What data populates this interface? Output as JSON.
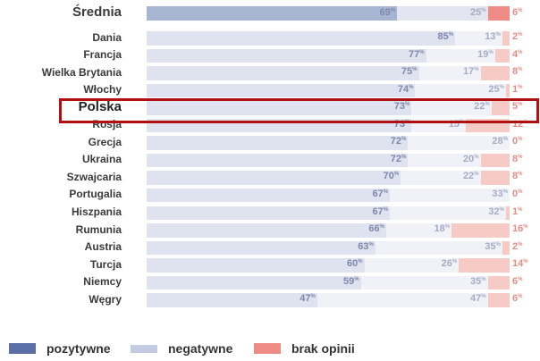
{
  "chart_data": {
    "type": "bar",
    "orientation": "horizontal",
    "stacked": true,
    "title": "",
    "xlabel": "",
    "ylabel": "",
    "xlim": [
      0,
      100
    ],
    "unit": "%",
    "categories": [
      "Średnia",
      "Dania",
      "Francja",
      "Wielka Brytania",
      "Włochy",
      "Polska",
      "Rosja",
      "Grecja",
      "Ukraina",
      "Szwajcaria",
      "Portugalia",
      "Hiszpania",
      "Rumunia",
      "Austria",
      "Turcja",
      "Niemcy",
      "Węgry"
    ],
    "series": [
      {
        "name": "pozytywne",
        "color": "#5b6fa6",
        "values": [
          69,
          85,
          77,
          75,
          74,
          73,
          73,
          72,
          72,
          70,
          67,
          67,
          66,
          63,
          60,
          59,
          47
        ]
      },
      {
        "name": "negatywne",
        "color": "#c3cbe3",
        "values": [
          25,
          13,
          19,
          17,
          25,
          22,
          15,
          28,
          20,
          22,
          33,
          32,
          18,
          35,
          26,
          35,
          47
        ]
      },
      {
        "name": "brak opinii",
        "color": "#ee8b84",
        "values": [
          6,
          2,
          4,
          8,
          1,
          5,
          12,
          0,
          8,
          8,
          0,
          1,
          16,
          2,
          14,
          6,
          6
        ]
      }
    ],
    "highlighted": "Polska",
    "legend_position": "bottom",
    "grid": false
  },
  "rows": [
    {
      "label": "Średnia",
      "pos": 69,
      "neg": 25,
      "na": 6
    },
    {
      "label": "Dania",
      "pos": 85,
      "neg": 13,
      "na": 2
    },
    {
      "label": "Francja",
      "pos": 77,
      "neg": 19,
      "na": 4
    },
    {
      "label": "Wielka Brytania",
      "pos": 75,
      "neg": 17,
      "na": 8
    },
    {
      "label": "Włochy",
      "pos": 74,
      "neg": 25,
      "na": 1
    },
    {
      "label": "Polska",
      "pos": 73,
      "neg": 22,
      "na": 5
    },
    {
      "label": "Rosja",
      "pos": 73,
      "neg": 15,
      "na": 12
    },
    {
      "label": "Grecja",
      "pos": 72,
      "neg": 28,
      "na": 0
    },
    {
      "label": "Ukraina",
      "pos": 72,
      "neg": 20,
      "na": 8
    },
    {
      "label": "Szwajcaria",
      "pos": 70,
      "neg": 22,
      "na": 8
    },
    {
      "label": "Portugalia",
      "pos": 67,
      "neg": 33,
      "na": 0
    },
    {
      "label": "Hiszpania",
      "pos": 67,
      "neg": 32,
      "na": 1
    },
    {
      "label": "Rumunia",
      "pos": 66,
      "neg": 18,
      "na": 16
    },
    {
      "label": "Austria",
      "pos": 63,
      "neg": 35,
      "na": 2
    },
    {
      "label": "Turcja",
      "pos": 60,
      "neg": 26,
      "na": 14
    },
    {
      "label": "Niemcy",
      "pos": 59,
      "neg": 35,
      "na": 6
    },
    {
      "label": "Węgry",
      "pos": 47,
      "neg": 47,
      "na": 6
    }
  ],
  "percent_sign": "%",
  "legend": {
    "items": [
      {
        "label": "pozytywne",
        "color": "#5b6fa6"
      },
      {
        "label": "negatywne",
        "color": "#c3cbe3"
      },
      {
        "label": "brak opinii",
        "color": "#ee8b84"
      }
    ]
  },
  "colors": {
    "avg_pos": "#a7b4d2",
    "avg_neg": "#e3e6f0",
    "avg_na": "#ee8b84",
    "pos": "#dfe2ef",
    "neg": "#f1f2f7",
    "na": "#f6cbc5",
    "highlight_border": "#b01010"
  }
}
